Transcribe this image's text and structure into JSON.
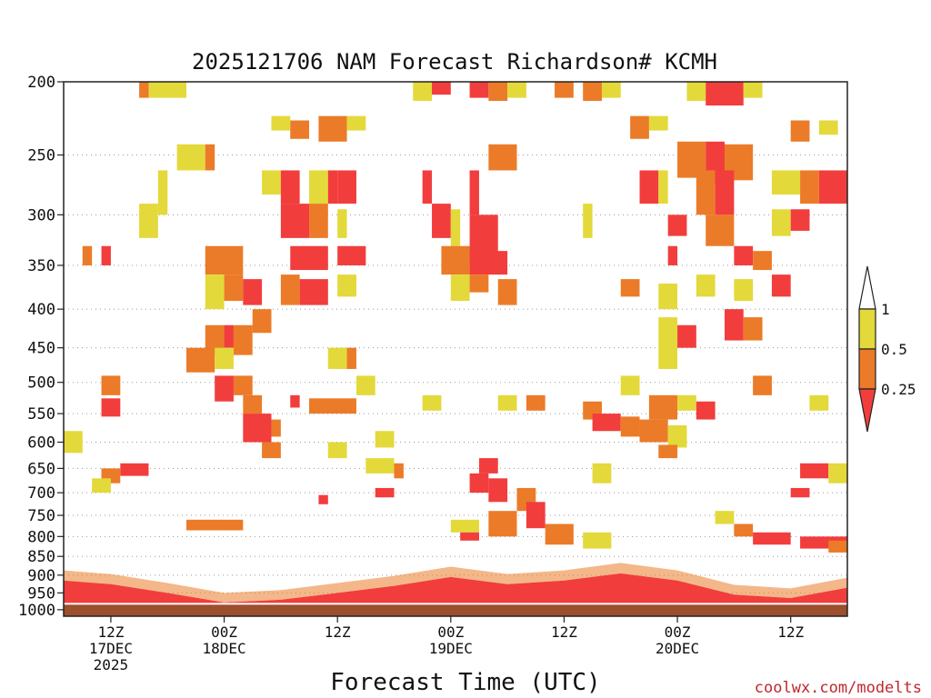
{
  "chart_data": {
    "type": "heatmap",
    "title": "2025121706 NAM Forecast Richardson# KCMH",
    "xlabel": "Forecast Time (UTC)",
    "ylabel": "",
    "credit": "coolwx.com/modelts",
    "y_scale": "log-pressure",
    "y_range_hpa": [
      1020,
      200
    ],
    "y_ticks": [
      "200",
      "250",
      "300",
      "350",
      "400",
      "450",
      "500",
      "550",
      "600",
      "650",
      "700",
      "750",
      "800",
      "850",
      "900",
      "950",
      "1000"
    ],
    "gridlines": "dotted horizontal at each pressure level",
    "x_range_hours": [
      1,
      84
    ],
    "x_ticks": [
      {
        "hour": 6,
        "lines": [
          "12Z",
          "17DEC",
          "2025"
        ]
      },
      {
        "hour": 18,
        "lines": [
          "00Z",
          "18DEC"
        ]
      },
      {
        "hour": 30,
        "lines": [
          "12Z"
        ]
      },
      {
        "hour": 42,
        "lines": [
          "00Z",
          "19DEC"
        ]
      },
      {
        "hour": 54,
        "lines": [
          "12Z"
        ]
      },
      {
        "hour": 66,
        "lines": [
          "00Z",
          "20DEC"
        ]
      },
      {
        "hour": 78,
        "lines": [
          "12Z"
        ]
      }
    ],
    "legend": {
      "placement": "right",
      "labels": [
        "1",
        "0.5",
        "0.25"
      ],
      "bins": [
        {
          "name": "0.5 to 1",
          "color": "#e3d93a"
        },
        {
          "name": "0.25 to 0.5",
          "color": "#eb7b28"
        },
        {
          "name": "below 0.25",
          "color": "#f23d3d"
        }
      ]
    },
    "colors": {
      "yellow": "#e3d93a",
      "orange": "#eb7b28",
      "red": "#f23d3d",
      "ground": "#9b4f2d"
    },
    "surface_layer": {
      "description": "solid brown ground band below ~985 hPa across whole period",
      "top_hpa": 985
    },
    "boundary_layer_red": [
      {
        "hour": 1,
        "top_hpa": 915
      },
      {
        "hour": 6,
        "top_hpa": 925
      },
      {
        "hour": 12,
        "top_hpa": 950
      },
      {
        "hour": 18,
        "top_hpa": 978
      },
      {
        "hour": 24,
        "top_hpa": 970
      },
      {
        "hour": 30,
        "top_hpa": 950
      },
      {
        "hour": 36,
        "top_hpa": 930
      },
      {
        "hour": 42,
        "top_hpa": 905
      },
      {
        "hour": 48,
        "top_hpa": 925
      },
      {
        "hour": 54,
        "top_hpa": 915
      },
      {
        "hour": 60,
        "top_hpa": 895
      },
      {
        "hour": 66,
        "top_hpa": 915
      },
      {
        "hour": 72,
        "top_hpa": 955
      },
      {
        "hour": 78,
        "top_hpa": 965
      },
      {
        "hour": 84,
        "top_hpa": 935
      }
    ],
    "patches": [
      {
        "h0": 10,
        "h1": 14,
        "p0": 200,
        "p1": 210,
        "c": "yellow"
      },
      {
        "h0": 9,
        "h1": 10,
        "p0": 200,
        "p1": 210,
        "c": "orange"
      },
      {
        "h0": 38,
        "h1": 40,
        "p0": 200,
        "p1": 212,
        "c": "yellow"
      },
      {
        "h0": 40,
        "h1": 42,
        "p0": 200,
        "p1": 208,
        "c": "red"
      },
      {
        "h0": 44,
        "h1": 46,
        "p0": 200,
        "p1": 210,
        "c": "red"
      },
      {
        "h0": 46,
        "h1": 48,
        "p0": 200,
        "p1": 212,
        "c": "orange"
      },
      {
        "h0": 48,
        "h1": 50,
        "p0": 200,
        "p1": 210,
        "c": "yellow"
      },
      {
        "h0": 53,
        "h1": 55,
        "p0": 200,
        "p1": 210,
        "c": "orange"
      },
      {
        "h0": 56,
        "h1": 58,
        "p0": 200,
        "p1": 212,
        "c": "orange"
      },
      {
        "h0": 58,
        "h1": 60,
        "p0": 200,
        "p1": 210,
        "c": "yellow"
      },
      {
        "h0": 67,
        "h1": 69,
        "p0": 200,
        "p1": 212,
        "c": "yellow"
      },
      {
        "h0": 69,
        "h1": 73,
        "p0": 200,
        "p1": 215,
        "c": "red"
      },
      {
        "h0": 73,
        "h1": 75,
        "p0": 200,
        "p1": 210,
        "c": "yellow"
      },
      {
        "h0": 23,
        "h1": 25,
        "p0": 222,
        "p1": 232,
        "c": "yellow"
      },
      {
        "h0": 25,
        "h1": 27,
        "p0": 225,
        "p1": 238,
        "c": "orange"
      },
      {
        "h0": 28,
        "h1": 31,
        "p0": 222,
        "p1": 240,
        "c": "orange"
      },
      {
        "h0": 31,
        "h1": 33,
        "p0": 222,
        "p1": 232,
        "c": "yellow"
      },
      {
        "h0": 61,
        "h1": 63,
        "p0": 222,
        "p1": 238,
        "c": "orange"
      },
      {
        "h0": 63,
        "h1": 65,
        "p0": 222,
        "p1": 232,
        "c": "yellow"
      },
      {
        "h0": 78,
        "h1": 80,
        "p0": 225,
        "p1": 240,
        "c": "orange"
      },
      {
        "h0": 81,
        "h1": 83,
        "p0": 225,
        "p1": 235,
        "c": "yellow"
      },
      {
        "h0": 13,
        "h1": 16,
        "p0": 242,
        "p1": 262,
        "c": "yellow"
      },
      {
        "h0": 16,
        "h1": 17,
        "p0": 242,
        "p1": 262,
        "c": "orange"
      },
      {
        "h0": 46,
        "h1": 49,
        "p0": 242,
        "p1": 262,
        "c": "orange"
      },
      {
        "h0": 66,
        "h1": 69,
        "p0": 240,
        "p1": 268,
        "c": "orange"
      },
      {
        "h0": 69,
        "h1": 71,
        "p0": 240,
        "p1": 272,
        "c": "red"
      },
      {
        "h0": 71,
        "h1": 74,
        "p0": 242,
        "p1": 270,
        "c": "orange"
      },
      {
        "h0": 11,
        "h1": 12,
        "p0": 262,
        "p1": 300,
        "c": "yellow"
      },
      {
        "h0": 22,
        "h1": 24,
        "p0": 262,
        "p1": 282,
        "c": "yellow"
      },
      {
        "h0": 24,
        "h1": 26,
        "p0": 262,
        "p1": 290,
        "c": "red"
      },
      {
        "h0": 27,
        "h1": 29,
        "p0": 262,
        "p1": 290,
        "c": "yellow"
      },
      {
        "h0": 29,
        "h1": 30,
        "p0": 262,
        "p1": 290,
        "c": "red"
      },
      {
        "h0": 30,
        "h1": 32,
        "p0": 262,
        "p1": 290,
        "c": "red"
      },
      {
        "h0": 39,
        "h1": 40,
        "p0": 262,
        "p1": 290,
        "c": "red"
      },
      {
        "h0": 44,
        "h1": 45,
        "p0": 262,
        "p1": 300,
        "c": "red"
      },
      {
        "h0": 62,
        "h1": 64,
        "p0": 262,
        "p1": 290,
        "c": "red"
      },
      {
        "h0": 64,
        "h1": 65,
        "p0": 262,
        "p1": 290,
        "c": "yellow"
      },
      {
        "h0": 68,
        "h1": 70,
        "p0": 262,
        "p1": 300,
        "c": "orange"
      },
      {
        "h0": 70,
        "h1": 72,
        "p0": 262,
        "p1": 300,
        "c": "red"
      },
      {
        "h0": 76,
        "h1": 79,
        "p0": 262,
        "p1": 282,
        "c": "yellow"
      },
      {
        "h0": 79,
        "h1": 81,
        "p0": 262,
        "p1": 290,
        "c": "orange"
      },
      {
        "h0": 81,
        "h1": 84,
        "p0": 262,
        "p1": 290,
        "c": "red"
      },
      {
        "h0": 9,
        "h1": 11,
        "p0": 290,
        "p1": 322,
        "c": "yellow"
      },
      {
        "h0": 24,
        "h1": 27,
        "p0": 290,
        "p1": 322,
        "c": "red"
      },
      {
        "h0": 27,
        "h1": 29,
        "p0": 290,
        "p1": 322,
        "c": "orange"
      },
      {
        "h0": 30,
        "h1": 31,
        "p0": 295,
        "p1": 322,
        "c": "yellow"
      },
      {
        "h0": 40,
        "h1": 42,
        "p0": 290,
        "p1": 322,
        "c": "red"
      },
      {
        "h0": 42,
        "h1": 43,
        "p0": 295,
        "p1": 330,
        "c": "yellow"
      },
      {
        "h0": 44,
        "h1": 47,
        "p0": 300,
        "p1": 345,
        "c": "red"
      },
      {
        "h0": 56,
        "h1": 57,
        "p0": 290,
        "p1": 322,
        "c": "yellow"
      },
      {
        "h0": 65,
        "h1": 67,
        "p0": 300,
        "p1": 320,
        "c": "red"
      },
      {
        "h0": 69,
        "h1": 72,
        "p0": 300,
        "p1": 330,
        "c": "orange"
      },
      {
        "h0": 76,
        "h1": 78,
        "p0": 295,
        "p1": 320,
        "c": "yellow"
      },
      {
        "h0": 78,
        "h1": 80,
        "p0": 295,
        "p1": 315,
        "c": "red"
      },
      {
        "h0": 3,
        "h1": 4,
        "p0": 330,
        "p1": 350,
        "c": "orange"
      },
      {
        "h0": 5,
        "h1": 6,
        "p0": 330,
        "p1": 350,
        "c": "red"
      },
      {
        "h0": 16,
        "h1": 20,
        "p0": 330,
        "p1": 360,
        "c": "orange"
      },
      {
        "h0": 25,
        "h1": 29,
        "p0": 330,
        "p1": 355,
        "c": "red"
      },
      {
        "h0": 30,
        "h1": 33,
        "p0": 330,
        "p1": 350,
        "c": "red"
      },
      {
        "h0": 41,
        "h1": 44,
        "p0": 330,
        "p1": 360,
        "c": "orange"
      },
      {
        "h0": 44,
        "h1": 48,
        "p0": 335,
        "p1": 360,
        "c": "red"
      },
      {
        "h0": 65,
        "h1": 66,
        "p0": 330,
        "p1": 350,
        "c": "red"
      },
      {
        "h0": 72,
        "h1": 74,
        "p0": 330,
        "p1": 350,
        "c": "red"
      },
      {
        "h0": 74,
        "h1": 76,
        "p0": 335,
        "p1": 355,
        "c": "orange"
      },
      {
        "h0": 16,
        "h1": 18,
        "p0": 360,
        "p1": 400,
        "c": "yellow"
      },
      {
        "h0": 18,
        "h1": 20,
        "p0": 360,
        "p1": 390,
        "c": "orange"
      },
      {
        "h0": 20,
        "h1": 22,
        "p0": 365,
        "p1": 395,
        "c": "red"
      },
      {
        "h0": 24,
        "h1": 26,
        "p0": 360,
        "p1": 395,
        "c": "orange"
      },
      {
        "h0": 26,
        "h1": 29,
        "p0": 365,
        "p1": 395,
        "c": "red"
      },
      {
        "h0": 30,
        "h1": 32,
        "p0": 360,
        "p1": 385,
        "c": "yellow"
      },
      {
        "h0": 42,
        "h1": 44,
        "p0": 360,
        "p1": 390,
        "c": "yellow"
      },
      {
        "h0": 44,
        "h1": 46,
        "p0": 360,
        "p1": 380,
        "c": "orange"
      },
      {
        "h0": 47,
        "h1": 49,
        "p0": 365,
        "p1": 395,
        "c": "orange"
      },
      {
        "h0": 60,
        "h1": 62,
        "p0": 365,
        "p1": 385,
        "c": "orange"
      },
      {
        "h0": 64,
        "h1": 66,
        "p0": 370,
        "p1": 400,
        "c": "yellow"
      },
      {
        "h0": 68,
        "h1": 70,
        "p0": 360,
        "p1": 385,
        "c": "yellow"
      },
      {
        "h0": 72,
        "h1": 74,
        "p0": 365,
        "p1": 390,
        "c": "yellow"
      },
      {
        "h0": 76,
        "h1": 78,
        "p0": 360,
        "p1": 385,
        "c": "red"
      },
      {
        "h0": 16,
        "h1": 18,
        "p0": 420,
        "p1": 460,
        "c": "orange"
      },
      {
        "h0": 18,
        "h1": 19,
        "p0": 420,
        "p1": 450,
        "c": "red"
      },
      {
        "h0": 19,
        "h1": 21,
        "p0": 420,
        "p1": 460,
        "c": "orange"
      },
      {
        "h0": 21,
        "h1": 23,
        "p0": 400,
        "p1": 430,
        "c": "orange"
      },
      {
        "h0": 64,
        "h1": 66,
        "p0": 410,
        "p1": 480,
        "c": "yellow"
      },
      {
        "h0": 66,
        "h1": 68,
        "p0": 420,
        "p1": 450,
        "c": "red"
      },
      {
        "h0": 71,
        "h1": 73,
        "p0": 400,
        "p1": 440,
        "c": "red"
      },
      {
        "h0": 73,
        "h1": 75,
        "p0": 410,
        "p1": 440,
        "c": "orange"
      },
      {
        "h0": 14,
        "h1": 17,
        "p0": 450,
        "p1": 485,
        "c": "orange"
      },
      {
        "h0": 17,
        "h1": 19,
        "p0": 450,
        "p1": 480,
        "c": "yellow"
      },
      {
        "h0": 29,
        "h1": 31,
        "p0": 450,
        "p1": 480,
        "c": "yellow"
      },
      {
        "h0": 31,
        "h1": 32,
        "p0": 450,
        "p1": 480,
        "c": "orange"
      },
      {
        "h0": 5,
        "h1": 7,
        "p0": 490,
        "p1": 520,
        "c": "orange"
      },
      {
        "h0": 17,
        "h1": 19,
        "p0": 490,
        "p1": 530,
        "c": "red"
      },
      {
        "h0": 19,
        "h1": 21,
        "p0": 490,
        "p1": 520,
        "c": "orange"
      },
      {
        "h0": 25,
        "h1": 26,
        "p0": 520,
        "p1": 540,
        "c": "red"
      },
      {
        "h0": 27,
        "h1": 32,
        "p0": 525,
        "p1": 550,
        "c": "orange"
      },
      {
        "h0": 32,
        "h1": 34,
        "p0": 490,
        "p1": 520,
        "c": "yellow"
      },
      {
        "h0": 74,
        "h1": 76,
        "p0": 490,
        "p1": 520,
        "c": "orange"
      },
      {
        "h0": 60,
        "h1": 62,
        "p0": 490,
        "p1": 520,
        "c": "yellow"
      },
      {
        "h0": 5,
        "h1": 7,
        "p0": 525,
        "p1": 555,
        "c": "red"
      },
      {
        "h0": 20,
        "h1": 22,
        "p0": 520,
        "p1": 550,
        "c": "orange"
      },
      {
        "h0": 39,
        "h1": 41,
        "p0": 520,
        "p1": 545,
        "c": "yellow"
      },
      {
        "h0": 47,
        "h1": 49,
        "p0": 520,
        "p1": 545,
        "c": "yellow"
      },
      {
        "h0": 50,
        "h1": 52,
        "p0": 520,
        "p1": 545,
        "c": "orange"
      },
      {
        "h0": 56,
        "h1": 58,
        "p0": 530,
        "p1": 560,
        "c": "orange"
      },
      {
        "h0": 63,
        "h1": 66,
        "p0": 520,
        "p1": 560,
        "c": "orange"
      },
      {
        "h0": 66,
        "h1": 68,
        "p0": 520,
        "p1": 545,
        "c": "yellow"
      },
      {
        "h0": 68,
        "h1": 70,
        "p0": 530,
        "p1": 560,
        "c": "red"
      },
      {
        "h0": 80,
        "h1": 82,
        "p0": 520,
        "p1": 545,
        "c": "yellow"
      },
      {
        "h0": 20,
        "h1": 23,
        "p0": 550,
        "p1": 600,
        "c": "red"
      },
      {
        "h0": 23,
        "h1": 24,
        "p0": 560,
        "p1": 590,
        "c": "orange"
      },
      {
        "h0": 57,
        "h1": 60,
        "p0": 550,
        "p1": 580,
        "c": "red"
      },
      {
        "h0": 60,
        "h1": 62,
        "p0": 555,
        "p1": 590,
        "c": "orange"
      },
      {
        "h0": 62,
        "h1": 65,
        "p0": 560,
        "p1": 600,
        "c": "orange"
      },
      {
        "h0": 65,
        "h1": 67,
        "p0": 570,
        "p1": 610,
        "c": "yellow"
      },
      {
        "h0": 1,
        "h1": 3,
        "p0": 580,
        "p1": 620,
        "c": "yellow"
      },
      {
        "h0": 29,
        "h1": 31,
        "p0": 600,
        "p1": 630,
        "c": "yellow"
      },
      {
        "h0": 34,
        "h1": 36,
        "p0": 580,
        "p1": 610,
        "c": "yellow"
      },
      {
        "h0": 22,
        "h1": 24,
        "p0": 600,
        "p1": 630,
        "c": "orange"
      },
      {
        "h0": 64,
        "h1": 66,
        "p0": 605,
        "p1": 630,
        "c": "orange"
      },
      {
        "h0": 7,
        "h1": 10,
        "p0": 640,
        "p1": 665,
        "c": "red"
      },
      {
        "h0": 5,
        "h1": 7,
        "p0": 650,
        "p1": 680,
        "c": "orange"
      },
      {
        "h0": 4,
        "h1": 6,
        "p0": 670,
        "p1": 700,
        "c": "yellow"
      },
      {
        "h0": 33,
        "h1": 36,
        "p0": 630,
        "p1": 660,
        "c": "yellow"
      },
      {
        "h0": 36,
        "h1": 37,
        "p0": 640,
        "p1": 670,
        "c": "orange"
      },
      {
        "h0": 45,
        "h1": 47,
        "p0": 630,
        "p1": 660,
        "c": "red"
      },
      {
        "h0": 44,
        "h1": 46,
        "p0": 660,
        "p1": 700,
        "c": "red"
      },
      {
        "h0": 46,
        "h1": 48,
        "p0": 670,
        "p1": 720,
        "c": "red"
      },
      {
        "h0": 49,
        "h1": 51,
        "p0": 690,
        "p1": 740,
        "c": "orange"
      },
      {
        "h0": 50,
        "h1": 52,
        "p0": 720,
        "p1": 780,
        "c": "red"
      },
      {
        "h0": 57,
        "h1": 59,
        "p0": 640,
        "p1": 680,
        "c": "yellow"
      },
      {
        "h0": 79,
        "h1": 82,
        "p0": 640,
        "p1": 670,
        "c": "red"
      },
      {
        "h0": 82,
        "h1": 84,
        "p0": 640,
        "p1": 680,
        "c": "yellow"
      },
      {
        "h0": 78,
        "h1": 80,
        "p0": 690,
        "p1": 710,
        "c": "red"
      },
      {
        "h0": 34,
        "h1": 36,
        "p0": 690,
        "p1": 710,
        "c": "red"
      },
      {
        "h0": 28,
        "h1": 29,
        "p0": 705,
        "p1": 725,
        "c": "red"
      },
      {
        "h0": 14,
        "h1": 20,
        "p0": 760,
        "p1": 785,
        "c": "orange"
      },
      {
        "h0": 42,
        "h1": 45,
        "p0": 760,
        "p1": 790,
        "c": "yellow"
      },
      {
        "h0": 43,
        "h1": 45,
        "p0": 790,
        "p1": 810,
        "c": "red"
      },
      {
        "h0": 46,
        "h1": 49,
        "p0": 740,
        "p1": 800,
        "c": "orange"
      },
      {
        "h0": 52,
        "h1": 55,
        "p0": 770,
        "p1": 820,
        "c": "orange"
      },
      {
        "h0": 56,
        "h1": 59,
        "p0": 790,
        "p1": 830,
        "c": "yellow"
      },
      {
        "h0": 74,
        "h1": 78,
        "p0": 790,
        "p1": 820,
        "c": "red"
      },
      {
        "h0": 79,
        "h1": 84,
        "p0": 800,
        "p1": 830,
        "c": "red"
      },
      {
        "h0": 72,
        "h1": 74,
        "p0": 770,
        "p1": 800,
        "c": "orange"
      },
      {
        "h0": 70,
        "h1": 72,
        "p0": 740,
        "p1": 770,
        "c": "yellow"
      },
      {
        "h0": 82,
        "h1": 84,
        "p0": 810,
        "p1": 840,
        "c": "orange"
      }
    ]
  }
}
